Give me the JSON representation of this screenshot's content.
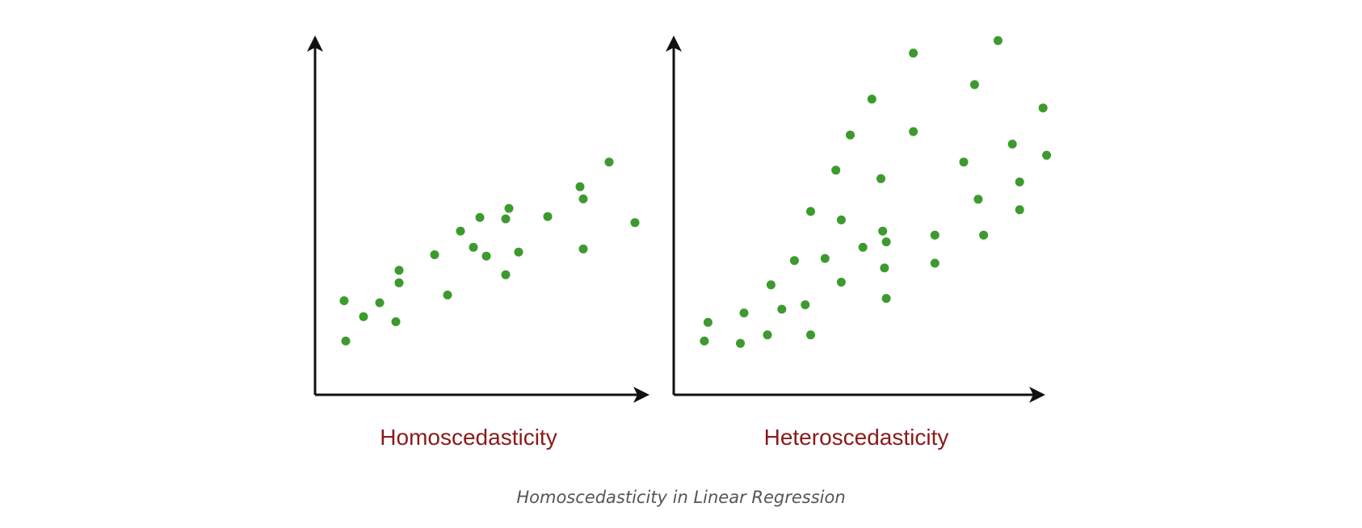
{
  "colors": {
    "point": "#3d9a2e",
    "title": "#8b1a1a",
    "axis": "#111111",
    "caption": "#555555"
  },
  "caption": "Homoscedasticity in Linear Regression",
  "chart_data": [
    {
      "type": "scatter",
      "title": "Homoscedasticity",
      "xlabel": "",
      "ylabel": "",
      "xlim": [
        0,
        100
      ],
      "ylim": [
        0,
        100
      ],
      "grid": false,
      "series": [
        {
          "points": [
            [
              9,
              27.8
            ],
            [
              9.5,
              15.9
            ],
            [
              15,
              23.1
            ],
            [
              20,
              27.2
            ],
            [
              25,
              21.6
            ],
            [
              26,
              33.1
            ],
            [
              26,
              36.8
            ],
            [
              37,
              41.4
            ],
            [
              41,
              29.5
            ],
            [
              45,
              48.4
            ],
            [
              49,
              43.6
            ],
            [
              51,
              52.4
            ],
            [
              53,
              41.0
            ],
            [
              59,
              52.0
            ],
            [
              59,
              35.5
            ],
            [
              60,
              55.1
            ],
            [
              63,
              42.2
            ],
            [
              72,
              52.7
            ],
            [
              82,
              61.5
            ],
            [
              83,
              57.9
            ],
            [
              83,
              43.1
            ],
            [
              91,
              68.8
            ],
            [
              99,
              50.9
            ]
          ]
        }
      ]
    },
    {
      "type": "scatter",
      "title": "Heteroscedasticity",
      "xlabel": "",
      "ylabel": "",
      "xlim": [
        0,
        100
      ],
      "ylim": [
        0,
        100
      ],
      "grid": false,
      "series": [
        {
          "points": [
            [
              8.5,
              15.9
            ],
            [
              9.5,
              21.4
            ],
            [
              18.5,
              15.2
            ],
            [
              19.5,
              24.2
            ],
            [
              26,
              17.7
            ],
            [
              27,
              32.5
            ],
            [
              30,
              25.3
            ],
            [
              33.5,
              39.7
            ],
            [
              36.5,
              26.6
            ],
            [
              38,
              54.2
            ],
            [
              38,
              17.7
            ],
            [
              42,
              40.3
            ],
            [
              45,
              66.4
            ],
            [
              46.5,
              51.7
            ],
            [
              46.5,
              33.3
            ],
            [
              49,
              76.8
            ],
            [
              52.5,
              43.6
            ],
            [
              55,
              87.4
            ],
            [
              57.5,
              63.9
            ],
            [
              58,
              48.4
            ],
            [
              59,
              28.5
            ],
            [
              58.5,
              37.5
            ],
            [
              59,
              45.2
            ],
            [
              66.5,
              101.0
            ],
            [
              66.5,
              77.8
            ],
            [
              72.5,
              47.2
            ],
            [
              72.5,
              38.9
            ],
            [
              80.5,
              68.8
            ],
            [
              83.5,
              91.7
            ],
            [
              84.5,
              57.8
            ],
            [
              86,
              47.2
            ],
            [
              90,
              104.7
            ],
            [
              94,
              74.1
            ],
            [
              96,
              62.9
            ],
            [
              96,
              54.7
            ],
            [
              102.5,
              84.8
            ],
            [
              103.5,
              70.8
            ]
          ]
        }
      ]
    }
  ]
}
